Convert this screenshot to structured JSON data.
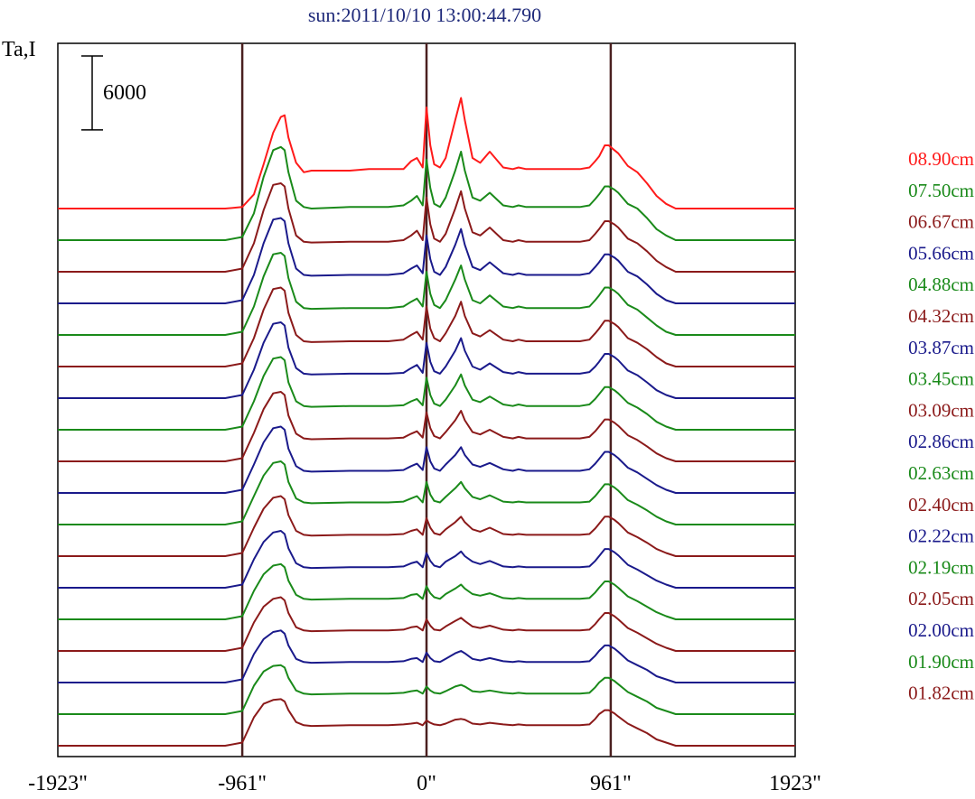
{
  "chart_data": {
    "type": "line",
    "title": "sun:2011/10/10 13:00:44.790",
    "ylabel": "Ta,I",
    "xlim": [
      -1923,
      1923
    ],
    "x_ticks": [
      {
        "value": -1923,
        "label": "-1923\""
      },
      {
        "value": -961,
        "label": "-961\""
      },
      {
        "value": 0,
        "label": "0\""
      },
      {
        "value": 961,
        "label": "961\""
      },
      {
        "value": 1923,
        "label": "1923\""
      }
    ],
    "vertical_lines_at": [
      -961,
      0,
      961
    ],
    "scale_bar": {
      "value": 6000,
      "label": "6000"
    },
    "series_offset_step": 2000,
    "profile_x": [
      -1923,
      -1550,
      -1500,
      -1050,
      -961,
      -900,
      -850,
      -800,
      -760,
      -740,
      -720,
      -680,
      -640,
      -600,
      -400,
      -300,
      -200,
      -120,
      -80,
      -50,
      -20,
      0,
      20,
      40,
      70,
      100,
      150,
      180,
      200,
      240,
      280,
      330,
      400,
      450,
      480,
      520,
      600,
      700,
      800,
      850,
      880,
      900,
      930,
      950,
      980,
      1000,
      1050,
      1100,
      1150,
      1200,
      1250,
      1300,
      1500,
      1923
    ],
    "series": [
      {
        "name": "08.90cm",
        "color": "#ff1a1a",
        "values": [
          0,
          0,
          0,
          0,
          100,
          900,
          2800,
          4800,
          5800,
          5900,
          4500,
          2900,
          2300,
          2400,
          2400,
          2500,
          2500,
          2500,
          3000,
          3200,
          2600,
          6400,
          4000,
          2800,
          2600,
          3200,
          5600,
          7000,
          5600,
          3200,
          2900,
          3600,
          2600,
          2500,
          2600,
          2500,
          2500,
          2500,
          2500,
          2600,
          3000,
          3300,
          4000,
          4000,
          3700,
          3500,
          2700,
          2300,
          1600,
          800,
          300,
          0,
          0,
          0
        ]
      },
      {
        "name": "07.50cm",
        "color": "#1a8a1a",
        "values": [
          0,
          0,
          0,
          0,
          200,
          1700,
          4000,
          5700,
          5900,
          5700,
          4300,
          2500,
          2100,
          2000,
          2100,
          2100,
          2100,
          2200,
          2500,
          2800,
          2200,
          5100,
          3300,
          2300,
          2100,
          2700,
          4400,
          5600,
          4400,
          2700,
          2500,
          3000,
          2200,
          2100,
          2200,
          2100,
          2100,
          2100,
          2100,
          2200,
          2600,
          2900,
          3400,
          3400,
          3200,
          3000,
          2300,
          2000,
          1400,
          700,
          300,
          0,
          0,
          0
        ]
      },
      {
        "name": "06.67cm",
        "color": "#8b1a1a",
        "values": [
          0,
          0,
          0,
          0,
          200,
          1800,
          3900,
          5500,
          5600,
          5400,
          4000,
          2300,
          1900,
          1850,
          1900,
          1900,
          1900,
          2000,
          2300,
          2600,
          2000,
          4700,
          3000,
          2100,
          1900,
          2400,
          4000,
          5100,
          4000,
          2500,
          2300,
          2800,
          2000,
          1900,
          2000,
          1900,
          1900,
          1900,
          1900,
          2000,
          2400,
          2700,
          3200,
          3200,
          3000,
          2800,
          2100,
          1800,
          1300,
          700,
          300,
          0,
          0,
          0
        ]
      },
      {
        "name": "05.66cm",
        "color": "#1a1a8b",
        "values": [
          0,
          0,
          0,
          0,
          200,
          1800,
          3800,
          5300,
          5400,
          5200,
          3800,
          2200,
          1800,
          1750,
          1800,
          1800,
          1800,
          1900,
          2200,
          2400,
          1900,
          4300,
          2800,
          2000,
          1800,
          2300,
          3700,
          4700,
          3700,
          2300,
          2100,
          2600,
          1900,
          1800,
          1900,
          1800,
          1800,
          1800,
          1800,
          1900,
          2300,
          2600,
          3100,
          3100,
          2900,
          2700,
          2000,
          1700,
          1200,
          600,
          200,
          0,
          0,
          0
        ]
      },
      {
        "name": "04.88cm",
        "color": "#1a8a1a",
        "values": [
          0,
          0,
          0,
          0,
          200,
          1800,
          3700,
          5100,
          5200,
          5000,
          3600,
          2100,
          1700,
          1650,
          1700,
          1700,
          1700,
          1800,
          2100,
          2300,
          1800,
          4000,
          2600,
          1900,
          1700,
          2200,
          3500,
          4400,
          3500,
          2200,
          2000,
          2500,
          1800,
          1700,
          1800,
          1700,
          1700,
          1700,
          1700,
          1800,
          2200,
          2500,
          3000,
          3000,
          2800,
          2600,
          1900,
          1600,
          1100,
          600,
          200,
          0,
          0,
          0
        ]
      },
      {
        "name": "04.32cm",
        "color": "#8b1a1a",
        "values": [
          0,
          0,
          0,
          0,
          200,
          1800,
          3600,
          4900,
          5000,
          4800,
          3400,
          2000,
          1600,
          1550,
          1600,
          1600,
          1600,
          1700,
          2000,
          2200,
          1700,
          3800,
          2400,
          1800,
          1600,
          2100,
          3200,
          4100,
          3200,
          2100,
          1900,
          2300,
          1700,
          1600,
          1700,
          1600,
          1600,
          1600,
          1600,
          1700,
          2100,
          2400,
          2900,
          2900,
          2700,
          2500,
          1800,
          1500,
          1100,
          600,
          200,
          0,
          0,
          0
        ]
      },
      {
        "name": "03.87cm",
        "color": "#1a1a8b",
        "values": [
          0,
          0,
          0,
          0,
          200,
          1800,
          3500,
          4700,
          4800,
          4600,
          3200,
          1900,
          1550,
          1500,
          1550,
          1550,
          1550,
          1600,
          1900,
          2100,
          1600,
          3500,
          2300,
          1700,
          1550,
          2000,
          3000,
          3800,
          3000,
          2000,
          1800,
          2200,
          1650,
          1550,
          1650,
          1550,
          1550,
          1550,
          1550,
          1650,
          2000,
          2300,
          2800,
          2800,
          2600,
          2400,
          1750,
          1450,
          1000,
          500,
          200,
          0,
          0,
          0
        ]
      },
      {
        "name": "03.45cm",
        "color": "#1a8a1a",
        "values": [
          0,
          0,
          0,
          0,
          200,
          1800,
          3400,
          4500,
          4600,
          4400,
          3000,
          1800,
          1500,
          1450,
          1500,
          1500,
          1500,
          1550,
          1800,
          1950,
          1550,
          3300,
          2200,
          1650,
          1500,
          1900,
          2800,
          3500,
          2800,
          1900,
          1750,
          2100,
          1600,
          1500,
          1600,
          1500,
          1500,
          1500,
          1500,
          1600,
          1950,
          2250,
          2700,
          2700,
          2500,
          2300,
          1700,
          1400,
          1000,
          500,
          200,
          0,
          0,
          0
        ]
      },
      {
        "name": "03.09cm",
        "color": "#8b1a1a",
        "values": [
          0,
          0,
          0,
          0,
          200,
          1800,
          3300,
          4300,
          4400,
          4200,
          2900,
          1750,
          1450,
          1400,
          1450,
          1450,
          1450,
          1500,
          1750,
          1900,
          1500,
          3100,
          2100,
          1600,
          1450,
          1850,
          2600,
          3200,
          2600,
          1850,
          1700,
          2000,
          1550,
          1450,
          1550,
          1450,
          1450,
          1450,
          1450,
          1550,
          1900,
          2200,
          2650,
          2650,
          2450,
          2250,
          1650,
          1350,
          950,
          500,
          200,
          0,
          0,
          0
        ]
      },
      {
        "name": "02.86cm",
        "color": "#1a1a8b",
        "values": [
          0,
          0,
          0,
          0,
          200,
          1800,
          3200,
          4100,
          4200,
          4000,
          2800,
          1700,
          1400,
          1350,
          1400,
          1400,
          1400,
          1450,
          1700,
          1850,
          1450,
          2900,
          2000,
          1550,
          1400,
          1800,
          2400,
          2900,
          2400,
          1800,
          1650,
          1900,
          1500,
          1400,
          1500,
          1400,
          1400,
          1400,
          1400,
          1500,
          1850,
          2150,
          2600,
          2600,
          2400,
          2200,
          1600,
          1300,
          900,
          500,
          200,
          0,
          0,
          0
        ]
      },
      {
        "name": "02.63cm",
        "color": "#1a8a1a",
        "values": [
          0,
          0,
          0,
          0,
          200,
          1800,
          3100,
          3900,
          4000,
          3800,
          2700,
          1650,
          1400,
          1350,
          1400,
          1400,
          1400,
          1450,
          1650,
          1800,
          1400,
          2700,
          1900,
          1500,
          1400,
          1750,
          2300,
          2700,
          2300,
          1750,
          1600,
          1850,
          1450,
          1400,
          1450,
          1400,
          1400,
          1400,
          1400,
          1450,
          1800,
          2100,
          2550,
          2550,
          2350,
          2150,
          1550,
          1250,
          900,
          500,
          200,
          0,
          0,
          0
        ]
      },
      {
        "name": "02.40cm",
        "color": "#8b1a1a",
        "values": [
          0,
          0,
          0,
          0,
          200,
          1800,
          3000,
          3700,
          3800,
          3600,
          2600,
          1600,
          1350,
          1300,
          1350,
          1350,
          1350,
          1400,
          1600,
          1700,
          1350,
          2400,
          1800,
          1450,
          1350,
          1700,
          2150,
          2500,
          2150,
          1700,
          1550,
          1800,
          1400,
          1350,
          1400,
          1350,
          1350,
          1350,
          1350,
          1400,
          1750,
          2050,
          2500,
          2500,
          2300,
          2100,
          1500,
          1200,
          850,
          450,
          200,
          0,
          0,
          0
        ]
      },
      {
        "name": "02.22cm",
        "color": "#1a1a8b",
        "values": [
          0,
          0,
          0,
          0,
          200,
          1800,
          2900,
          3500,
          3600,
          3400,
          2500,
          1550,
          1300,
          1250,
          1300,
          1300,
          1300,
          1350,
          1550,
          1650,
          1300,
          2200,
          1700,
          1400,
          1300,
          1650,
          2000,
          2300,
          2000,
          1650,
          1500,
          1700,
          1350,
          1300,
          1350,
          1300,
          1300,
          1300,
          1300,
          1350,
          1700,
          2000,
          2450,
          2450,
          2250,
          2050,
          1450,
          1150,
          800,
          450,
          200,
          0,
          0,
          0
        ]
      },
      {
        "name": "02.19cm",
        "color": "#1a8a1a",
        "values": [
          0,
          0,
          0,
          0,
          200,
          1800,
          2850,
          3400,
          3500,
          3300,
          2450,
          1550,
          1300,
          1250,
          1300,
          1300,
          1300,
          1350,
          1550,
          1600,
          1300,
          2100,
          1650,
          1400,
          1300,
          1600,
          1950,
          2200,
          1950,
          1600,
          1500,
          1650,
          1350,
          1300,
          1350,
          1300,
          1300,
          1300,
          1300,
          1350,
          1700,
          2000,
          2400,
          2400,
          2200,
          2000,
          1450,
          1150,
          800,
          450,
          200,
          0,
          0,
          0
        ]
      },
      {
        "name": "02.05cm",
        "color": "#8b1a1a",
        "values": [
          0,
          0,
          0,
          0,
          200,
          1800,
          2800,
          3300,
          3400,
          3200,
          2400,
          1500,
          1300,
          1250,
          1300,
          1300,
          1300,
          1350,
          1500,
          1550,
          1300,
          2000,
          1600,
          1350,
          1300,
          1550,
          1900,
          2100,
          1900,
          1550,
          1450,
          1600,
          1350,
          1300,
          1350,
          1300,
          1300,
          1300,
          1300,
          1350,
          1700,
          2000,
          2400,
          2400,
          2200,
          2000,
          1450,
          1150,
          800,
          450,
          200,
          0,
          0,
          0
        ]
      },
      {
        "name": "02.00cm",
        "color": "#1a1a8b",
        "values": [
          0,
          0,
          0,
          0,
          200,
          1800,
          2750,
          3200,
          3300,
          3100,
          2350,
          1500,
          1300,
          1250,
          1300,
          1300,
          1300,
          1350,
          1500,
          1550,
          1300,
          1900,
          1550,
          1350,
          1300,
          1500,
          1850,
          2000,
          1850,
          1500,
          1400,
          1550,
          1350,
          1300,
          1350,
          1300,
          1300,
          1300,
          1300,
          1350,
          1700,
          2000,
          2350,
          2350,
          2150,
          1950,
          1400,
          1100,
          800,
          400,
          200,
          0,
          0,
          0
        ]
      },
      {
        "name": "01.90cm",
        "color": "#1a8a1a",
        "values": [
          0,
          0,
          0,
          0,
          200,
          1800,
          2700,
          3050,
          3100,
          2950,
          2300,
          1500,
          1300,
          1250,
          1300,
          1300,
          1300,
          1350,
          1450,
          1500,
          1300,
          1750,
          1500,
          1350,
          1300,
          1450,
          1750,
          1850,
          1750,
          1450,
          1400,
          1500,
          1350,
          1300,
          1350,
          1300,
          1300,
          1300,
          1300,
          1350,
          1700,
          2000,
          2300,
          2300,
          2100,
          1900,
          1400,
          1100,
          800,
          400,
          200,
          0,
          0,
          0
        ]
      },
      {
        "name": "01.82cm",
        "color": "#8b1a1a",
        "values": [
          0,
          0,
          0,
          0,
          200,
          1800,
          2650,
          2900,
          2950,
          2800,
          2250,
          1500,
          1300,
          1250,
          1300,
          1300,
          1300,
          1350,
          1400,
          1450,
          1300,
          1600,
          1450,
          1350,
          1300,
          1400,
          1650,
          1700,
          1650,
          1400,
          1350,
          1450,
          1350,
          1300,
          1350,
          1300,
          1300,
          1300,
          1300,
          1350,
          1700,
          2000,
          2250,
          2250,
          2050,
          1850,
          1400,
          1100,
          800,
          400,
          200,
          0,
          0,
          0
        ]
      }
    ]
  }
}
